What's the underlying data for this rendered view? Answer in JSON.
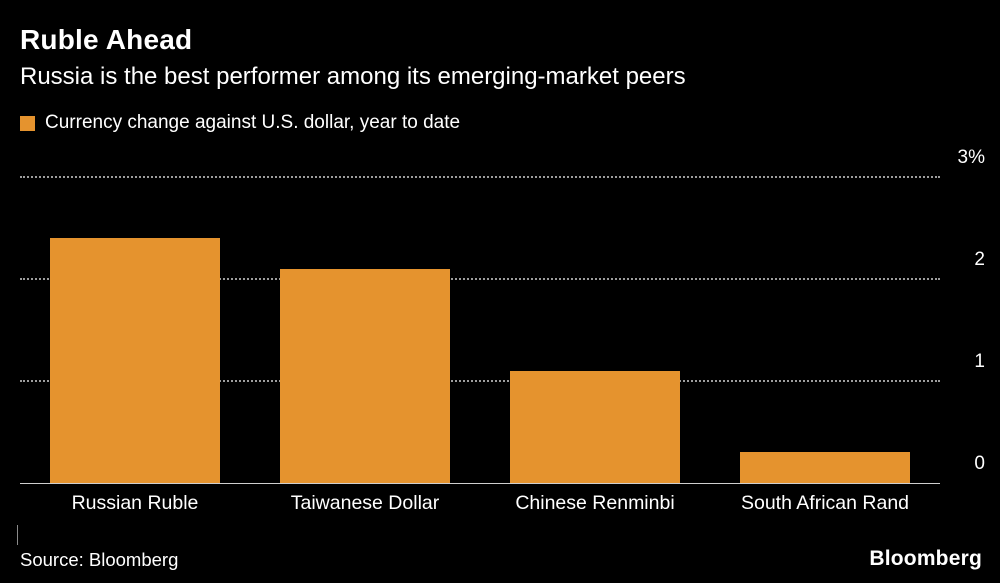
{
  "header": {
    "title": "Ruble Ahead",
    "subtitle": "Russia is the best performer among its emerging-market peers"
  },
  "legend": {
    "label": "Currency change against U.S. dollar, year to date",
    "swatch_color": "#e5932e"
  },
  "chart_data": {
    "type": "bar",
    "title": "Ruble Ahead",
    "subtitle": "Russia is the best performer among its emerging-market peers",
    "series_label": "Currency change against U.S. dollar, year to date",
    "categories": [
      "Russian Ruble",
      "Taiwanese Dollar",
      "Chinese Renminbi",
      "South African Rand"
    ],
    "values": [
      2.4,
      2.1,
      1.1,
      0.3
    ],
    "unit": "%",
    "xlabel": "",
    "ylabel": "",
    "ylim": [
      0,
      3
    ],
    "yticks": [
      {
        "value": 3,
        "label": "3%"
      },
      {
        "value": 2,
        "label": "2"
      },
      {
        "value": 1,
        "label": "1"
      },
      {
        "value": 0,
        "label": "0"
      }
    ],
    "bar_color": "#e5932e",
    "background_color": "#000000",
    "grid": "horizontal-dotted",
    "legend_position": "top-left"
  },
  "footer": {
    "source": "Source: Bloomberg",
    "brand": "Bloomberg"
  }
}
